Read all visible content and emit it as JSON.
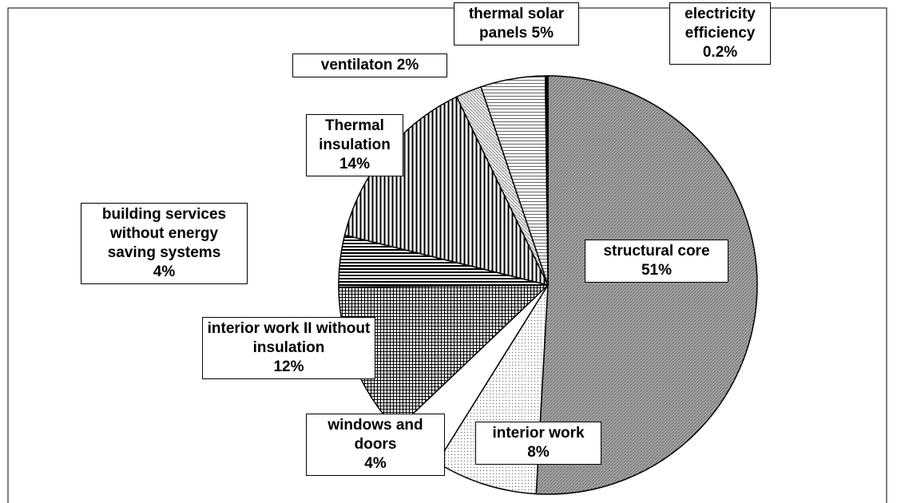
{
  "chart_data": {
    "type": "pie",
    "categories": [
      "structural core",
      "interior work",
      "windows and doors",
      "interior work II without insulation",
      "building services without energy saving systems",
      "Thermal insulation",
      "ventilaton",
      "thermal solar panels",
      "electricity efficiency"
    ],
    "values": [
      51,
      8,
      4,
      12,
      4,
      14,
      2,
      5,
      0.2
    ],
    "value_labels": [
      "51%",
      "8%",
      "4%",
      "12%",
      "4%",
      "14%",
      "2%",
      "5%",
      "0.2%"
    ]
  }
}
